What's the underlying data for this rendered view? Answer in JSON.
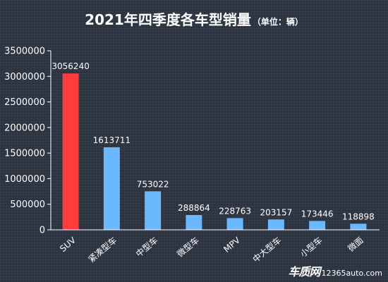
{
  "chart_data": {
    "type": "bar",
    "title": "2021年四季度各车型销量",
    "unit_note": "（单位：辆）",
    "categories": [
      "SUV",
      "紧凑型车",
      "中型车",
      "微型车",
      "MPV",
      "中大型车",
      "小型车",
      "微面"
    ],
    "values": [
      3056240,
      1613711,
      753022,
      288864,
      228763,
      203157,
      173446,
      118898
    ],
    "y_ticks": [
      "0",
      "500000",
      "1000000",
      "1500000",
      "2000000",
      "2500000",
      "3000000",
      "3500000"
    ],
    "ylim": [
      0,
      3500000
    ],
    "grid": false,
    "legend": "none",
    "colors": {
      "highlight": "#ff3b3b",
      "bar": "#6cb8ff",
      "background": "#2c3340",
      "text": "#ffffff"
    },
    "highlight_index": 0
  },
  "watermark": {
    "brand": "车质网",
    "url": "12365auto.com"
  }
}
